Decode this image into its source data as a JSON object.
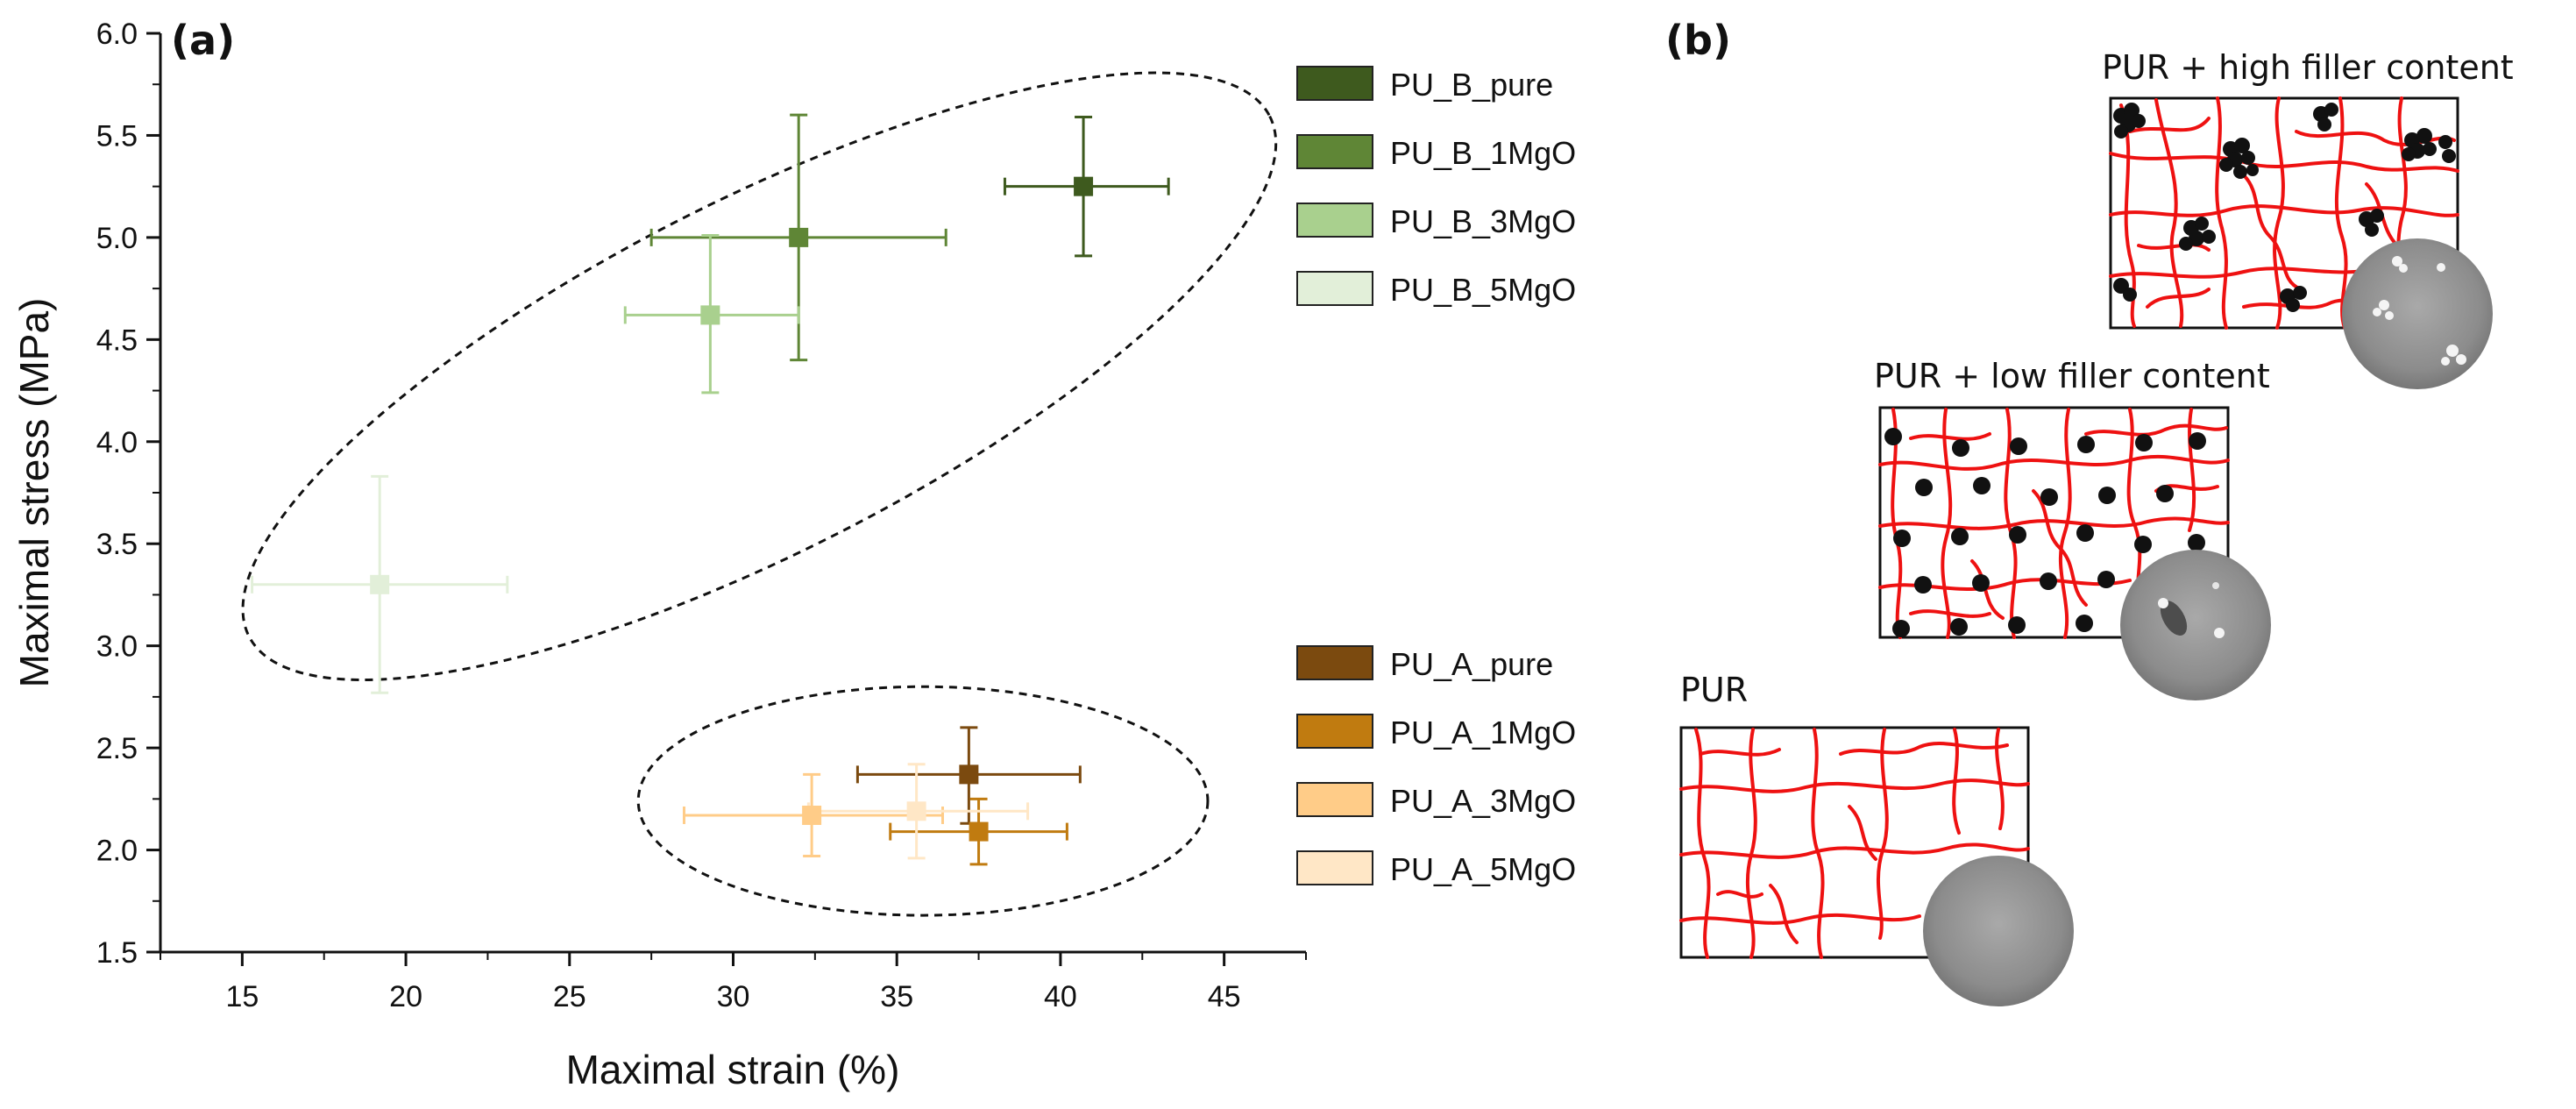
{
  "panels": {
    "a": {
      "open": "(",
      "letter": "a",
      "close": ")"
    },
    "b": {
      "open": "(",
      "letter": "b",
      "close": ")"
    }
  },
  "chart_data": {
    "type": "scatter",
    "title": "",
    "xlabel": "Maximal strain (%)",
    "ylabel": "Maximal stress (MPa)",
    "xlim": [
      12.5,
      47.5
    ],
    "ylim": [
      1.5,
      6.0
    ],
    "xticks": [
      15,
      20,
      25,
      30,
      35,
      40,
      45
    ],
    "yticks": [
      1.5,
      2.0,
      2.5,
      3.0,
      3.5,
      4.0,
      4.5,
      5.0,
      5.5,
      6.0
    ],
    "xtick_labels": [
      "15",
      "20",
      "25",
      "30",
      "35",
      "40",
      "45"
    ],
    "ytick_labels": [
      "1.5",
      "2.0",
      "2.5",
      "3.0",
      "3.5",
      "4.0",
      "4.5",
      "5.0",
      "5.5",
      "6.0"
    ],
    "grid": false,
    "series": [
      {
        "name": "PU_B_pure",
        "color": "#3e5a1e",
        "x": 40.7,
        "y": 5.25,
        "xerr": [
          38.3,
          43.3
        ],
        "yerr": [
          4.91,
          5.59
        ]
      },
      {
        "name": "PU_B_1MgO",
        "color": "#5f8636",
        "x": 32.0,
        "y": 5.0,
        "xerr": [
          27.5,
          36.5
        ],
        "yerr": [
          4.4,
          5.6
        ]
      },
      {
        "name": "PU_B_3MgO",
        "color": "#a9d08e",
        "x": 29.3,
        "y": 4.62,
        "xerr": [
          26.7,
          32.0
        ],
        "yerr": [
          4.24,
          5.01
        ]
      },
      {
        "name": "PU_B_5MgO",
        "color": "#e2efd9",
        "x": 19.2,
        "y": 3.3,
        "xerr": [
          15.3,
          23.1
        ],
        "yerr": [
          2.77,
          3.83
        ]
      },
      {
        "name": "PU_A_pure",
        "color": "#7b4a0f",
        "x": 37.2,
        "y": 2.37,
        "xerr": [
          33.8,
          40.6
        ],
        "yerr": [
          2.13,
          2.6
        ]
      },
      {
        "name": "PU_A_1MgO",
        "color": "#c07b10",
        "x": 37.5,
        "y": 2.09,
        "xerr": [
          34.8,
          40.2
        ],
        "yerr": [
          1.93,
          2.25
        ]
      },
      {
        "name": "PU_A_3MgO",
        "color": "#ffcc88",
        "x": 32.4,
        "y": 2.17,
        "xerr": [
          28.5,
          36.4
        ],
        "yerr": [
          1.97,
          2.37
        ]
      },
      {
        "name": "PU_A_5MgO",
        "color": "#ffe7c6",
        "x": 35.6,
        "y": 2.19,
        "xerr": [
          32.3,
          39.0
        ],
        "yerr": [
          1.96,
          2.42
        ]
      }
    ],
    "ellipses": [
      {
        "name": "PU_B group",
        "cx": 30.8,
        "cy": 4.32,
        "rx": 17.5,
        "ry": 0.86,
        "rotation": -27
      },
      {
        "name": "PU_A group",
        "cx": 35.8,
        "cy": 2.24,
        "rx": 8.7,
        "ry": 0.56,
        "rotation": 0
      }
    ],
    "legend_position": "right"
  },
  "schematic": {
    "high": {
      "label": "PUR + high filler content"
    },
    "low": {
      "label": "PUR + low filler content"
    },
    "pure": {
      "label": "PUR"
    }
  }
}
